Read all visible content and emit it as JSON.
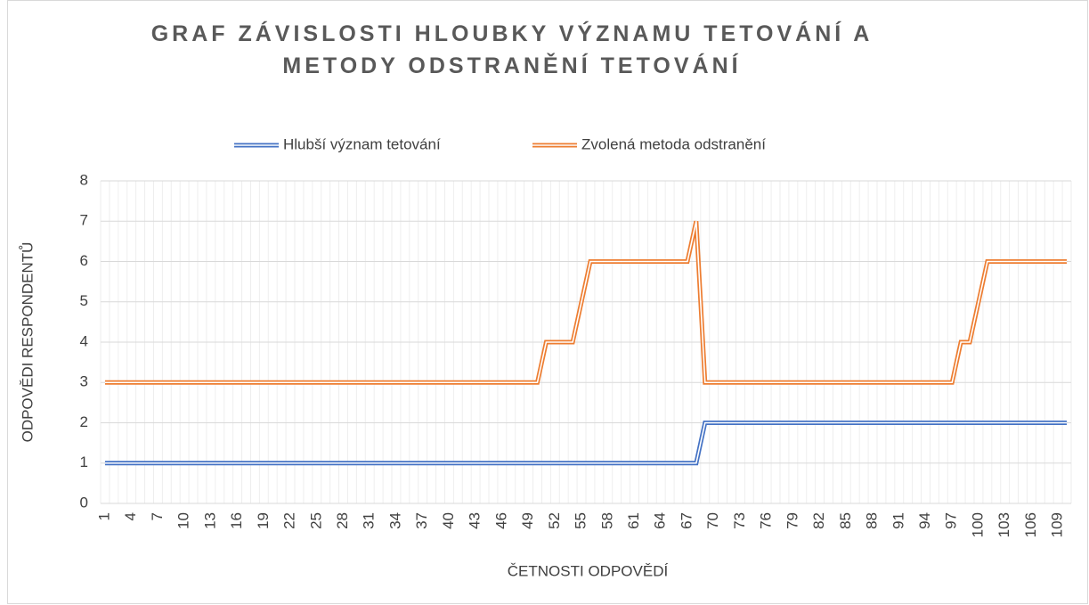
{
  "chart_data": {
    "type": "line",
    "title": "GRAF ZÁVISLOSTI HLOUBKY VÝZNAMU TETOVÁNÍ A METODY ODSTRANĚNÍ TETOVÁNÍ",
    "x_label": "ČETNOSTI ODPOVĚDÍ",
    "y_label": "ODPOVĚDI RESPONDENTŮ",
    "categories": [
      "1",
      null,
      null,
      "4",
      null,
      null,
      "7",
      null,
      null,
      "10",
      null,
      null,
      "13",
      null,
      null,
      "16",
      null,
      null,
      "19",
      null,
      null,
      "22",
      null,
      null,
      "25",
      null,
      null,
      "28",
      null,
      null,
      "31",
      null,
      null,
      "34",
      null,
      null,
      "37",
      null,
      null,
      "40",
      null,
      null,
      "43",
      null,
      null,
      "46",
      null,
      null,
      "49",
      null,
      null,
      "52",
      null,
      null,
      "55",
      null,
      null,
      "58",
      null,
      null,
      "61",
      null,
      null,
      "64",
      null,
      null,
      "67",
      null,
      null,
      "70",
      null,
      null,
      "73",
      null,
      null,
      "76",
      null,
      null,
      "79",
      null,
      null,
      "82",
      null,
      null,
      "85",
      null,
      null,
      "88",
      null,
      null,
      "91",
      null,
      null,
      "94",
      null,
      null,
      "97",
      null,
      null,
      "100",
      null,
      null,
      "103",
      null,
      null,
      "106",
      null,
      null,
      "109",
      null
    ],
    "series": [
      {
        "name": "Hlubší význam tetování",
        "color": "#4472c4",
        "values": [
          1,
          1,
          1,
          1,
          1,
          1,
          1,
          1,
          1,
          1,
          1,
          1,
          1,
          1,
          1,
          1,
          1,
          1,
          1,
          1,
          1,
          1,
          1,
          1,
          1,
          1,
          1,
          1,
          1,
          1,
          1,
          1,
          1,
          1,
          1,
          1,
          1,
          1,
          1,
          1,
          1,
          1,
          1,
          1,
          1,
          1,
          1,
          1,
          1,
          1,
          1,
          1,
          1,
          1,
          1,
          1,
          1,
          1,
          1,
          1,
          1,
          1,
          1,
          1,
          1,
          1,
          1,
          1,
          2,
          2,
          2,
          2,
          2,
          2,
          2,
          2,
          2,
          2,
          2,
          2,
          2,
          2,
          2,
          2,
          2,
          2,
          2,
          2,
          2,
          2,
          2,
          2,
          2,
          2,
          2,
          2,
          2,
          2,
          2,
          2,
          2,
          2,
          2,
          2,
          2,
          2,
          2,
          2,
          2,
          2
        ]
      },
      {
        "name": "Zvolená metoda odstranění",
        "color": "#ed7d31",
        "values": [
          3,
          3,
          3,
          3,
          3,
          3,
          3,
          3,
          3,
          3,
          3,
          3,
          3,
          3,
          3,
          3,
          3,
          3,
          3,
          3,
          3,
          3,
          3,
          3,
          3,
          3,
          3,
          3,
          3,
          3,
          3,
          3,
          3,
          3,
          3,
          3,
          3,
          3,
          3,
          3,
          3,
          3,
          3,
          3,
          3,
          3,
          3,
          3,
          3,
          3,
          4,
          4,
          4,
          4,
          5,
          6,
          6,
          6,
          6,
          6,
          6,
          6,
          6,
          6,
          6,
          6,
          6,
          7,
          3,
          3,
          3,
          3,
          3,
          3,
          3,
          3,
          3,
          3,
          3,
          3,
          3,
          3,
          3,
          3,
          3,
          3,
          3,
          3,
          3,
          3,
          3,
          3,
          3,
          3,
          3,
          3,
          3,
          4,
          4,
          5,
          6,
          6,
          6,
          6,
          6,
          6,
          6,
          6,
          6,
          6
        ]
      }
    ],
    "ylim": [
      0,
      8
    ],
    "yticks": [
      0,
      1,
      2,
      3,
      4,
      5,
      6,
      7,
      8
    ],
    "grid": true,
    "legend": "top"
  }
}
